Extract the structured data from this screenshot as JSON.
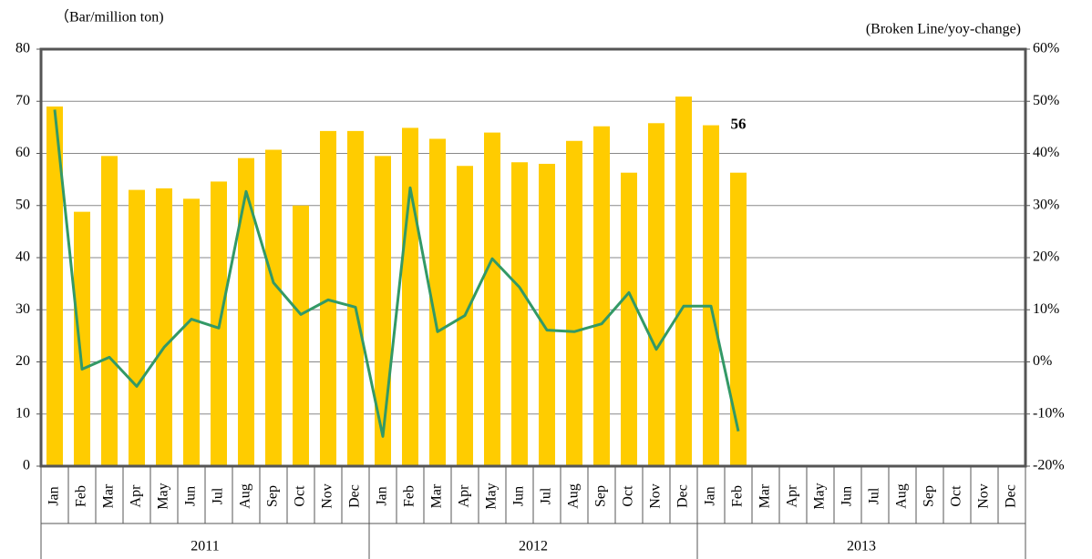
{
  "chart_data": {
    "type": "bar",
    "y_label": "（Bar/million ton)",
    "y2_label": "(Broken Line/yoy-change)",
    "categories": [
      "Jan",
      "Feb",
      "Mar",
      "Apr",
      "May",
      "Jun",
      "Jul",
      "Aug",
      "Sep",
      "Oct",
      "Nov",
      "Dec",
      "Jan",
      "Feb",
      "Mar",
      "Apr",
      "May",
      "Jun",
      "Jul",
      "Aug",
      "Sep",
      "Oct",
      "Nov",
      "Dec",
      "Jan",
      "Feb",
      "Mar",
      "Apr",
      "May",
      "Jun",
      "Jul",
      "Aug",
      "Sep",
      "Oct",
      "Nov",
      "Dec"
    ],
    "groups": [
      "2011",
      "2012",
      "2013"
    ],
    "series": [
      {
        "type": "bar",
        "color": "#FFCC00",
        "values": [
          69,
          48.8,
          59.5,
          53,
          53.3,
          51.3,
          54.6,
          59.1,
          60.7,
          50,
          64.3,
          64.3,
          59.5,
          64.9,
          62.8,
          57.6,
          64,
          58.3,
          58,
          62.4,
          65.2,
          56.3,
          65.8,
          70.9,
          65.4,
          56.3,
          null,
          null,
          null,
          null,
          null,
          null,
          null,
          null,
          null,
          null
        ],
        "value_labels": [
          null,
          null,
          null,
          null,
          null,
          null,
          null,
          null,
          null,
          null,
          null,
          null,
          null,
          null,
          null,
          null,
          null,
          null,
          null,
          null,
          null,
          null,
          null,
          null,
          null,
          "56",
          null,
          null,
          null,
          null,
          null,
          null,
          null,
          null,
          null,
          null
        ],
        "value_label_color": "#F07020"
      },
      {
        "type": "line",
        "axis": "y2",
        "color": "#339966",
        "values": [
          48.4,
          -1.4,
          0.9,
          -4.7,
          2.8,
          8.2,
          6.5,
          32.7,
          15.2,
          9.1,
          11.9,
          10.5,
          -14.3,
          33.4,
          5.8,
          8.9,
          19.8,
          14.3,
          6.1,
          5.8,
          7.3,
          13.3,
          2.4,
          10.7,
          10.7,
          -13.3,
          null,
          null,
          null,
          null,
          null,
          null,
          null,
          null,
          null,
          null
        ]
      }
    ],
    "ylim": [
      0,
      80
    ],
    "yticks": [
      0,
      10,
      20,
      30,
      40,
      50,
      60,
      70,
      80
    ],
    "y2lim": [
      -20,
      60
    ],
    "y2ticks": [
      {
        "value": -20,
        "label": "-20%"
      },
      {
        "value": -10,
        "label": "-10%"
      },
      {
        "value": 0,
        "label": "0%"
      },
      {
        "value": 10,
        "label": "10%"
      },
      {
        "value": 20,
        "label": "20%"
      },
      {
        "value": 30,
        "label": "30%"
      },
      {
        "value": 40,
        "label": "40%"
      },
      {
        "value": 50,
        "label": "50%"
      },
      {
        "value": 60,
        "label": "60%"
      }
    ],
    "grid": true
  }
}
